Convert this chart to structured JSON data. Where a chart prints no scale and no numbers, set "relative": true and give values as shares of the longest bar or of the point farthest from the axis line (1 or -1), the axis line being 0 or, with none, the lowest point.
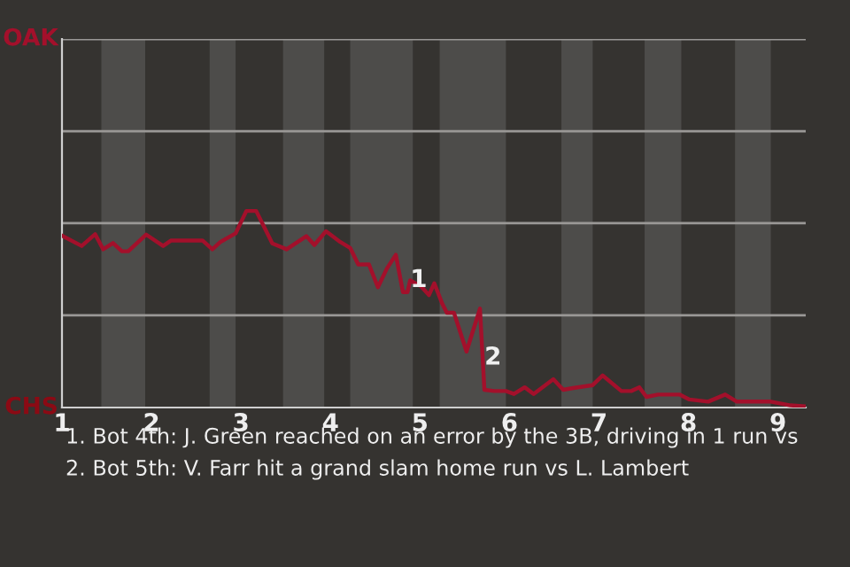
{
  "chart_data": {
    "type": "line",
    "relative": true,
    "x": [
      1.01,
      1.22,
      1.37,
      1.46,
      1.57,
      1.67,
      1.74,
      1.94,
      2.13,
      2.22,
      2.57,
      2.68,
      2.77,
      2.94,
      3.06,
      3.17,
      3.35,
      3.51,
      3.73,
      3.82,
      3.95,
      4.11,
      4.22,
      4.31,
      4.43,
      4.53,
      4.63,
      4.73,
      4.81,
      4.86,
      4.89,
      5.01,
      5.1,
      5.16,
      5.25,
      5.3,
      5.38,
      5.52,
      5.67,
      5.72,
      5.83,
      5.96,
      6.05,
      6.17,
      6.27,
      6.49,
      6.6,
      6.71,
      6.93,
      7.04,
      7.25,
      7.36,
      7.45,
      7.53,
      7.66,
      7.9,
      8.01,
      8.22,
      8.41,
      8.54,
      8.92,
      9.14,
      9.29
    ],
    "series": [
      {
        "color": "#a3102b",
        "values": [
          0.872,
          0.822,
          0.882,
          0.805,
          0.837,
          0.795,
          0.795,
          0.88,
          0.822,
          0.85,
          0.85,
          0.805,
          0.842,
          0.886,
          1,
          1,
          0.835,
          0.805,
          0.872,
          0.827,
          0.897,
          0.842,
          0.812,
          0.728,
          0.728,
          0.612,
          0.707,
          0.777,
          0.587,
          0.587,
          0.647,
          0.617,
          0.572,
          0.632,
          0.527,
          0.482,
          0.482,
          0.285,
          0.503,
          0.09,
          0.084,
          0.084,
          0.069,
          0.103,
          0.069,
          0.144,
          0.09,
          0.099,
          0.114,
          0.163,
          0.084,
          0.084,
          0.103,
          0.054,
          0.066,
          0.066,
          0.041,
          0.03,
          0.066,
          0.03,
          0.03,
          0.011,
          0.006
        ]
      }
    ],
    "xlim": [
      1,
      9.31
    ],
    "xticks": [
      1,
      2,
      3,
      4,
      5,
      6,
      7,
      8,
      9
    ],
    "ref_lines": [
      {
        "axis": "y",
        "value": 0.469,
        "color": "#9a9896"
      },
      {
        "axis": "y",
        "value": 0.938,
        "color": "#9a9896"
      },
      {
        "axis": "y",
        "value": 1.406,
        "color": "#9a9896"
      },
      {
        "axis": "y",
        "value": 1.875,
        "color": "#9a9896"
      }
    ],
    "bands": [
      {
        "axis": "x",
        "from": 1.44,
        "to": 1.93,
        "color": "#4d4c4a"
      },
      {
        "axis": "x",
        "from": 2.65,
        "to": 2.94,
        "color": "#4d4c4a"
      },
      {
        "axis": "x",
        "from": 3.47,
        "to": 3.93,
        "color": "#4d4c4a"
      },
      {
        "axis": "x",
        "from": 4.22,
        "to": 4.92,
        "color": "#4d4c4a"
      },
      {
        "axis": "x",
        "from": 5.22,
        "to": 5.96,
        "color": "#4d4c4a"
      },
      {
        "axis": "x",
        "from": 6.58,
        "to": 6.93,
        "color": "#4d4c4a"
      },
      {
        "axis": "x",
        "from": 7.51,
        "to": 7.92,
        "color": "#4d4c4a"
      },
      {
        "axis": "x",
        "from": 8.52,
        "to": 8.92,
        "color": "#4d4c4a"
      }
    ],
    "annotations": [
      "OAK",
      "CHS",
      {
        "text": "1",
        "x": 4.89,
        "y": 0.647
      },
      {
        "text": "2",
        "x": 5.72,
        "y": 0.253
      },
      "1. Bot 4th: J. Green reached on an error by the 3B, driving in 1 run vs",
      "2. Bot 5th: V. Farr hit a grand slam home run vs L. Lambert"
    ],
    "marker": "none",
    "line_style": "solid"
  }
}
